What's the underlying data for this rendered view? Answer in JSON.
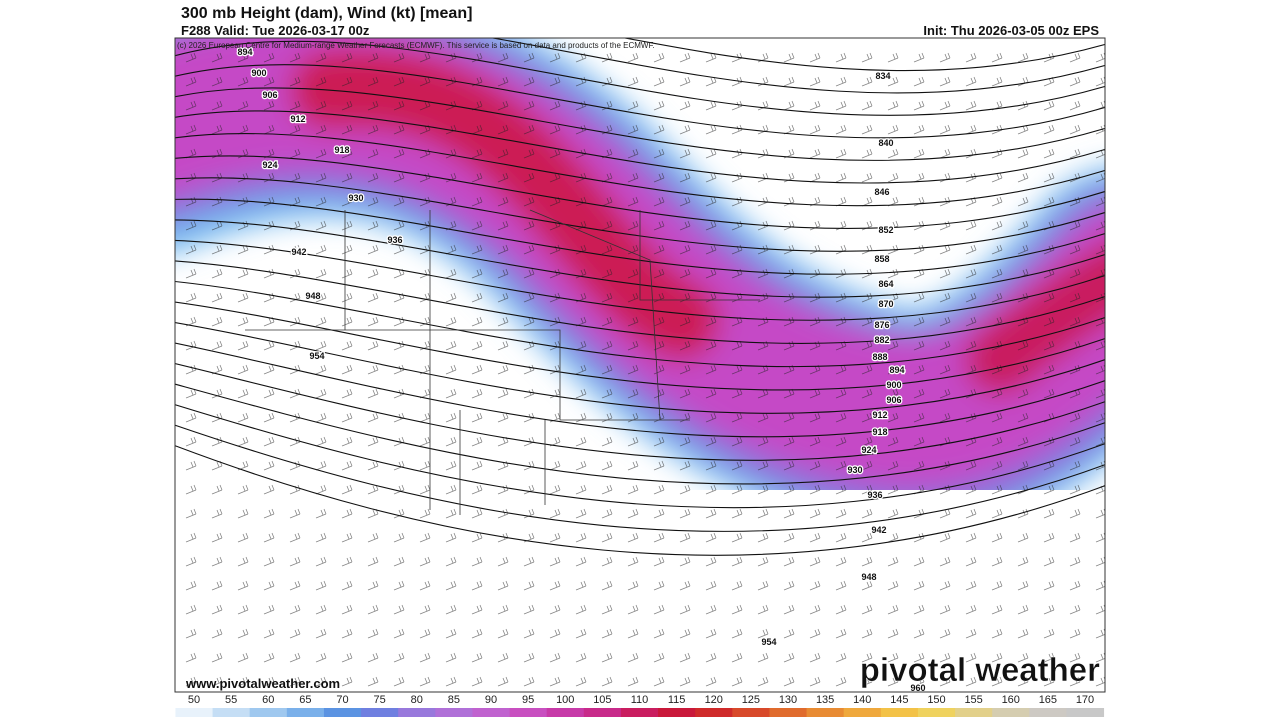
{
  "header": {
    "title": "300 mb Height (dam), Wind (kt) [mean]",
    "valid": "F288 Valid: Tue 2026-03-17 00z",
    "init": "Init: Thu 2026-03-05 00z EPS",
    "credit": "(c) 2026 European Centre for Medium-range Weather Forecasts (ECMWF). This service is based on data and products of the ECMWF."
  },
  "map": {
    "west_labels": [
      894,
      900,
      906,
      912,
      918,
      924,
      930,
      936,
      942,
      948,
      954
    ],
    "east_labels": [
      834,
      840,
      846,
      852,
      858,
      864,
      870,
      876,
      882,
      888,
      894,
      900,
      906,
      912,
      918,
      924,
      930,
      936,
      942,
      948,
      954,
      960
    ]
  },
  "footer": {
    "url": "www.pivotalweather.com",
    "brand": "pivotal weather"
  },
  "colorbar": {
    "ticks": [
      50,
      55,
      60,
      65,
      70,
      75,
      80,
      85,
      90,
      95,
      100,
      105,
      110,
      115,
      120,
      125,
      130,
      135,
      140,
      145,
      150,
      155,
      160,
      165,
      170
    ],
    "colors": [
      "#e8f2fb",
      "#c5def5",
      "#9fc8ef",
      "#7ab0ea",
      "#5b93e2",
      "#6f7fe0",
      "#9878dc",
      "#b070d8",
      "#c062cf",
      "#c84fc0",
      "#c73aa8",
      "#c82a8a",
      "#c91d5f",
      "#c9183a",
      "#cf2a2a",
      "#d8492a",
      "#e06b2d",
      "#e88b33",
      "#efa83c",
      "#f3c247",
      "#efd25e",
      "#e2d08a",
      "#d5cdb0",
      "#cdc9c3",
      "#c8c8c8"
    ]
  }
}
